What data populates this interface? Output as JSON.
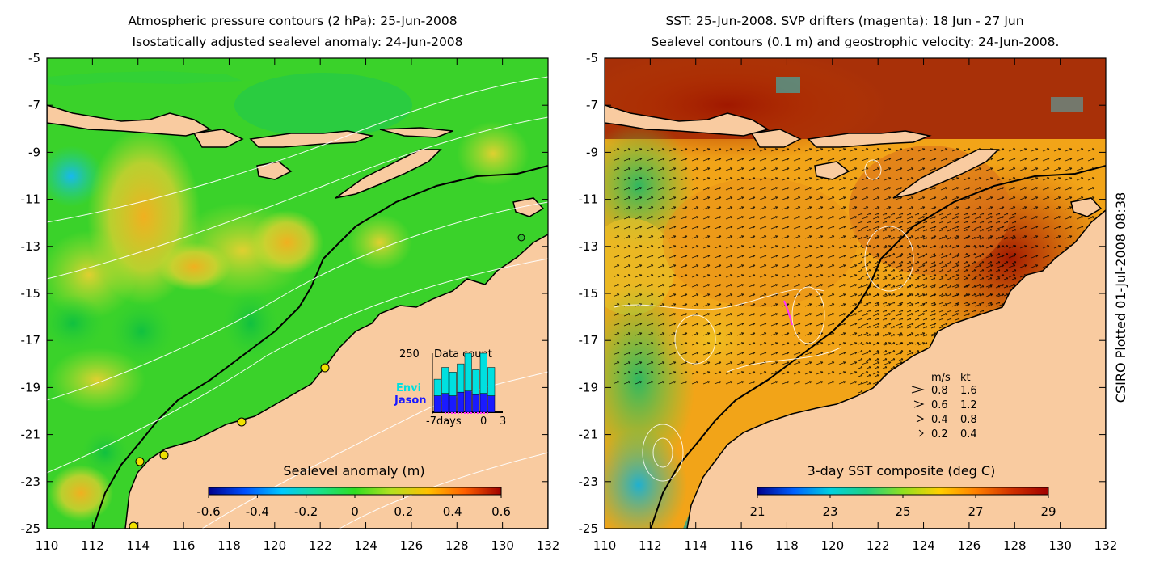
{
  "chart_data": [
    {
      "type": "heatmap",
      "title": [
        "Atmospheric pressure contours (2 hPa): 25-Jun-2008",
        "Isostatically adjusted sealevel anomaly: 24-Jun-2008"
      ],
      "x_ticks": [
        "110",
        "112",
        "114",
        "116",
        "118",
        "120",
        "122",
        "124",
        "126",
        "128",
        "130",
        "132"
      ],
      "y_ticks": [
        "-5",
        "-7",
        "-9",
        "-11",
        "-13",
        "-15",
        "-17",
        "-19",
        "-21",
        "-23",
        "-25"
      ],
      "xlim": [
        110,
        132
      ],
      "ylim": [
        -25,
        -5
      ],
      "colorbar": {
        "label": "Sealevel anomaly (m)",
        "range": [
          -0.6,
          0.6
        ],
        "ticks": [
          "-0.6",
          "-0.4",
          "-0.2",
          "0",
          "0.2",
          "0.4",
          "0.6"
        ],
        "colors": [
          "#00008c",
          "#0050ff",
          "#00c8ff",
          "#18e090",
          "#30dd20",
          "#b4e020",
          "#ffc000",
          "#ff6000",
          "#a00000"
        ]
      },
      "inset": {
        "title": "Data count",
        "ymax_label": "250",
        "x_labels": [
          "-7days",
          "0",
          "3"
        ],
        "series": [
          {
            "name": "Envi",
            "color": "#00e0e0",
            "values": [
              70,
              110,
              100,
              120,
              160,
              105,
              170,
              120
            ]
          },
          {
            "name": "Jason",
            "color": "#1a1aff",
            "values": [
              70,
              80,
              70,
              85,
              90,
              75,
              80,
              70
            ]
          }
        ]
      }
    },
    {
      "type": "heatmap",
      "title": [
        "SST: 25-Jun-2008. SVP drifters (magenta): 18 Jun - 27 Jun",
        "Sealevel contours (0.1 m) and geostrophic velocity: 24-Jun-2008."
      ],
      "x_ticks": [
        "110",
        "112",
        "114",
        "116",
        "118",
        "120",
        "122",
        "124",
        "126",
        "128",
        "130",
        "132"
      ],
      "y_ticks": [
        "-5",
        "-7",
        "-9",
        "-11",
        "-13",
        "-15",
        "-17",
        "-19",
        "-21",
        "-23",
        "-25"
      ],
      "xlim": [
        110,
        132
      ],
      "ylim": [
        -25,
        -5
      ],
      "colorbar": {
        "label": "3-day SST composite (deg C)",
        "range": [
          21,
          29
        ],
        "ticks": [
          "21",
          "23",
          "25",
          "27",
          "29"
        ],
        "colors": [
          "#00008c",
          "#0060ff",
          "#00d0e0",
          "#20d080",
          "#90e020",
          "#ffd000",
          "#ff8000",
          "#d03000",
          "#a00000"
        ]
      },
      "velocity_legend": {
        "header": [
          "m/s",
          "kt"
        ],
        "rows": [
          [
            "0.8",
            "1.6"
          ],
          [
            "0.6",
            "1.2"
          ],
          [
            "0.4",
            "0.8"
          ],
          [
            "0.2",
            "0.4"
          ]
        ]
      }
    }
  ],
  "footer": "CSIRO Plotted 01-Jul-2008 08:38"
}
